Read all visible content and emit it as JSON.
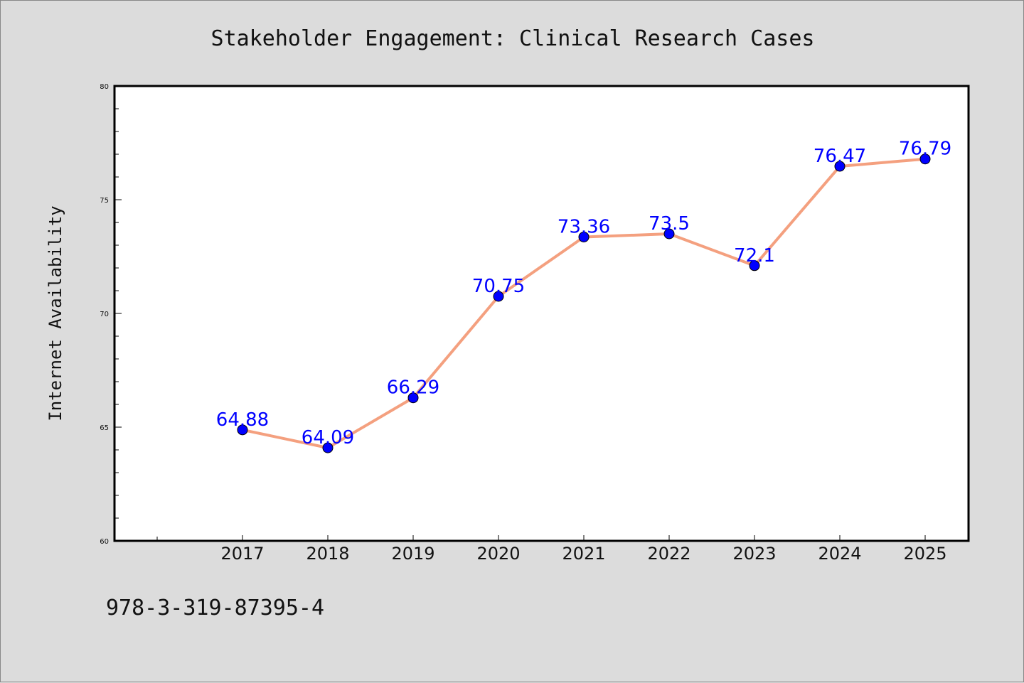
{
  "chart_data": {
    "type": "line",
    "title": "Stakeholder Engagement: Clinical Research Cases",
    "xlabel": "",
    "ylabel": "Internet Availability",
    "categories": [
      "2017",
      "2018",
      "2019",
      "2020",
      "2021",
      "2022",
      "2023",
      "2024",
      "2025"
    ],
    "series": [
      {
        "values": [
          64.88,
          64.09,
          66.29,
          70.75,
          73.36,
          73.5,
          72.1,
          76.47,
          76.79
        ],
        "labels": [
          "64.88",
          "64.09",
          "66.29",
          "70.75",
          "73.36",
          "73.5",
          "72.1",
          "76.47",
          "76.79"
        ],
        "line_color": "#f4a07f",
        "marker_color": "#0000ff",
        "label_color": "#0000ff"
      }
    ],
    "ylim": [
      60,
      80
    ],
    "yticks": [
      "60",
      "65",
      "70",
      "75",
      "80"
    ],
    "grid": false,
    "legend": "none"
  },
  "footer": {
    "isbn": "978-3-319-87395-4"
  },
  "colors": {
    "background": "#dcdcdc",
    "plot_area": "#ffffff",
    "axis": "#000000"
  }
}
